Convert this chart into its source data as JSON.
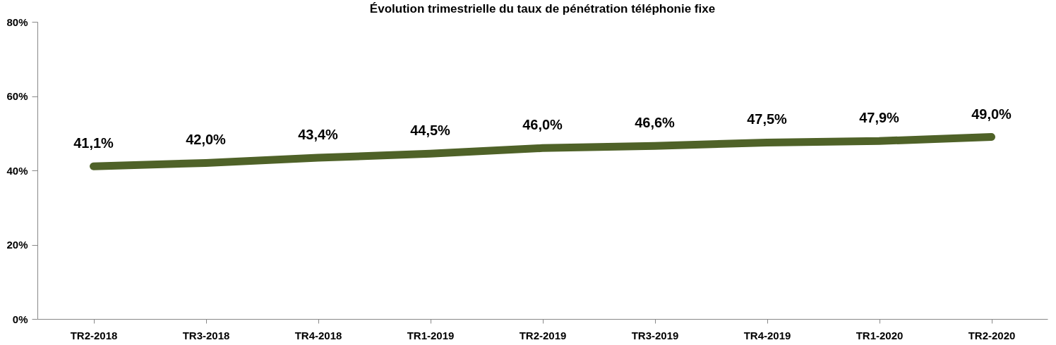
{
  "chart_data": {
    "type": "line",
    "title": "Évolution trimestrielle du taux de pénétration téléphonie fixe",
    "categories": [
      "TR2-2018",
      "TR3-2018",
      "TR4-2018",
      "TR1-2019",
      "TR2-2019",
      "TR3-2019",
      "TR4-2019",
      "TR1-2020",
      "TR2-2020"
    ],
    "series": [
      {
        "color": "#4f6228",
        "values": [
          41.1,
          42.0,
          43.4,
          44.5,
          46.0,
          46.6,
          47.5,
          47.9,
          49.0
        ],
        "value_labels": [
          "41,1%",
          "42,0%",
          "43,4%",
          "44,5%",
          "46,0%",
          "46,6%",
          "47,5%",
          "47,9%",
          "49,0%"
        ]
      }
    ],
    "ylim": [
      0,
      80
    ],
    "yticks": [
      {
        "value": 0,
        "label": "0%"
      },
      {
        "value": 20,
        "label": "20%"
      },
      {
        "value": 40,
        "label": "40%"
      },
      {
        "value": 60,
        "label": "60%"
      },
      {
        "value": 80,
        "label": "80%"
      }
    ],
    "grid": false,
    "marker": "none",
    "line_style": "solid"
  }
}
